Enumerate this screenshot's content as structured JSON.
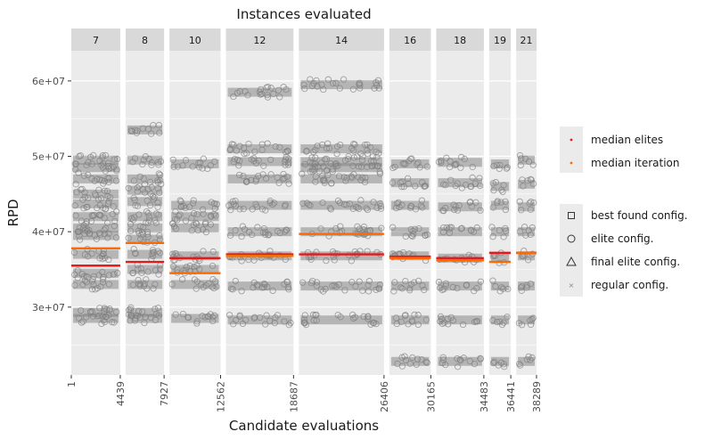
{
  "chart_data": {
    "type": "scatter",
    "title": "Instances evaluated",
    "xlabel": "Candidate evaluations",
    "ylabel": "RPD",
    "y_range": [
      21000000,
      64000000
    ],
    "y_ticks": [
      {
        "value": 30000000,
        "label": "3e+07"
      },
      {
        "value": 40000000,
        "label": "4e+07"
      },
      {
        "value": 50000000,
        "label": "5e+07"
      },
      {
        "value": 60000000,
        "label": "6e+07"
      }
    ],
    "x_ticks": [
      "1",
      "4439",
      "7927",
      "12562",
      "18687",
      "26406",
      "30165",
      "34483",
      "36441",
      "38289"
    ],
    "panels": [
      {
        "label": "7",
        "x_start": 1,
        "x_end": 4439,
        "median_elites": 35500000,
        "median_iteration": 37800000,
        "levels": [
          28500000,
          29300000,
          33000000,
          34500000,
          37000000,
          39500000,
          40500000,
          42000000,
          43700000,
          45000000,
          47000000,
          48500000,
          49500000
        ]
      },
      {
        "label": "8",
        "x_start": 4439,
        "x_end": 7927,
        "median_elites": 36000000,
        "median_iteration": 38500000,
        "levels": [
          28500000,
          29300000,
          33000000,
          35000000,
          37000000,
          39000000,
          40500000,
          42000000,
          44000000,
          45500000,
          47000000,
          49500000,
          53500000
        ]
      },
      {
        "label": "10",
        "x_start": 7927,
        "x_end": 12562,
        "median_elites": 36500000,
        "median_iteration": 34500000,
        "levels": [
          28500000,
          33000000,
          35000000,
          36800000,
          40500000,
          42000000,
          43500000,
          49000000
        ]
      },
      {
        "label": "12",
        "x_start": 12562,
        "x_end": 18687,
        "median_elites": 37000000,
        "median_iteration": 36800000,
        "levels": [
          28300000,
          32800000,
          36800000,
          40000000,
          43500000,
          47000000,
          49300000,
          51000000,
          58500000
        ]
      },
      {
        "label": "14",
        "x_start": 18687,
        "x_end": 26406,
        "median_elites": 37000000,
        "median_iteration": 39700000,
        "levels": [
          28300000,
          32800000,
          36800000,
          40000000,
          43500000,
          47000000,
          48500000,
          49300000,
          51000000,
          59500000
        ]
      },
      {
        "label": "16",
        "x_start": 26406,
        "x_end": 30165,
        "median_elites": 36700000,
        "median_iteration": 36500000,
        "levels": [
          22800000,
          28300000,
          32800000,
          36800000,
          40000000,
          43500000,
          46500000,
          49000000
        ]
      },
      {
        "label": "18",
        "x_start": 30165,
        "x_end": 34483,
        "median_elites": 36500000,
        "median_iteration": 36200000,
        "levels": [
          22800000,
          28300000,
          32800000,
          36500000,
          40000000,
          43300000,
          46500000,
          49200000
        ]
      },
      {
        "label": "19",
        "x_start": 34483,
        "x_end": 36441,
        "median_elites": 37200000,
        "median_iteration": 36000000,
        "levels": [
          22800000,
          28300000,
          32800000,
          36500000,
          40000000,
          43500000,
          46000000,
          49000000
        ]
      },
      {
        "label": "21",
        "x_start": 36441,
        "x_end": 38289,
        "median_elites": 37200000,
        "median_iteration": 37200000,
        "levels": [
          22800000,
          28300000,
          32800000,
          36800000,
          40000000,
          43300000,
          46300000,
          49500000
        ]
      }
    ],
    "legend_lines": [
      {
        "label": "median elites",
        "color": "#e41a1c"
      },
      {
        "label": "median iteration",
        "color": "#ff6a00"
      }
    ],
    "legend_shapes": [
      {
        "label": "best found config.",
        "shape": "square"
      },
      {
        "label": "elite config.",
        "shape": "circle"
      },
      {
        "label": "final elite config.",
        "shape": "triangle"
      },
      {
        "label": "regular config.",
        "shape": "cross"
      }
    ],
    "grid": true,
    "legend_position": "right",
    "colors": {
      "panel_bg": "#ebebeb",
      "strip_bg": "#d9d9d9",
      "grid": "#ffffff",
      "points": "#7f7f7f",
      "median_elites": "#e41a1c",
      "median_iteration": "#ff6a00"
    }
  }
}
